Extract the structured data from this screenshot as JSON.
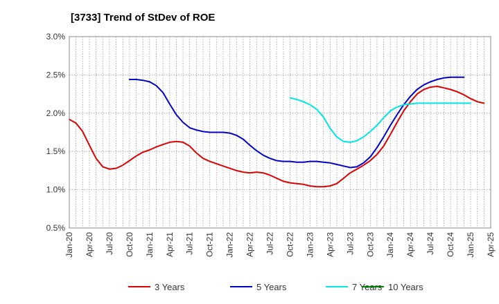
{
  "chart_data": {
    "type": "line",
    "title": "[3733]  Trend of StDev of ROE",
    "xlabel": "",
    "ylabel": "",
    "y_ticks": [
      "0.5%",
      "1.0%",
      "1.5%",
      "2.0%",
      "2.5%",
      "3.0%"
    ],
    "y_tick_values": [
      0.5,
      1.0,
      1.5,
      2.0,
      2.5,
      3.0
    ],
    "ylim": [
      0.5,
      3.0
    ],
    "x_ticks": [
      "Jan-20",
      "Apr-20",
      "Jul-20",
      "Oct-20",
      "Jan-21",
      "Apr-21",
      "Jul-21",
      "Oct-21",
      "Jan-22",
      "Apr-22",
      "Jul-22",
      "Oct-22",
      "Jan-23",
      "Apr-23",
      "Jul-23",
      "Oct-23",
      "Jan-24",
      "Apr-24",
      "Jul-24",
      "Oct-24",
      "Jan-25",
      "Apr-25"
    ],
    "x_months": [
      "2020-01",
      "2020-02",
      "2020-03",
      "2020-04",
      "2020-05",
      "2020-06",
      "2020-07",
      "2020-08",
      "2020-09",
      "2020-10",
      "2020-11",
      "2020-12",
      "2021-01",
      "2021-02",
      "2021-03",
      "2021-04",
      "2021-05",
      "2021-06",
      "2021-07",
      "2021-08",
      "2021-09",
      "2021-10",
      "2021-11",
      "2021-12",
      "2022-01",
      "2022-02",
      "2022-03",
      "2022-04",
      "2022-05",
      "2022-06",
      "2022-07",
      "2022-08",
      "2022-09",
      "2022-10",
      "2022-11",
      "2022-12",
      "2023-01",
      "2023-02",
      "2023-03",
      "2023-04",
      "2023-05",
      "2023-06",
      "2023-07",
      "2023-08",
      "2023-09",
      "2023-10",
      "2023-11",
      "2023-12",
      "2024-01",
      "2024-02",
      "2024-03",
      "2024-04",
      "2024-05",
      "2024-06",
      "2024-07",
      "2024-08",
      "2024-09",
      "2024-10",
      "2024-11",
      "2024-12",
      "2025-01",
      "2025-02",
      "2025-03",
      "2025-04"
    ],
    "xlim": [
      "2020-01",
      "2025-04"
    ],
    "grid": true,
    "legend_position": "bottom",
    "series": [
      {
        "name": "3 Years",
        "color": "#dd0000",
        "start": "2020-01",
        "values": [
          1.92,
          1.87,
          1.76,
          1.58,
          1.41,
          1.3,
          1.27,
          1.28,
          1.32,
          1.38,
          1.44,
          1.49,
          1.52,
          1.56,
          1.59,
          1.62,
          1.63,
          1.62,
          1.57,
          1.48,
          1.41,
          1.37,
          1.34,
          1.31,
          1.28,
          1.25,
          1.23,
          1.22,
          1.23,
          1.22,
          1.19,
          1.15,
          1.11,
          1.09,
          1.08,
          1.07,
          1.05,
          1.04,
          1.04,
          1.05,
          1.08,
          1.15,
          1.22,
          1.27,
          1.32,
          1.38,
          1.46,
          1.57,
          1.72,
          1.88,
          2.03,
          2.15,
          2.25,
          2.31,
          2.34,
          2.35,
          2.33,
          2.31,
          2.28,
          2.24,
          2.19,
          2.15,
          2.13
        ]
      },
      {
        "name": "5 Years",
        "color": "#0000cc",
        "start": "2020-10",
        "values": [
          2.44,
          2.44,
          2.43,
          2.41,
          2.36,
          2.27,
          2.12,
          1.98,
          1.88,
          1.81,
          1.78,
          1.76,
          1.75,
          1.75,
          1.75,
          1.74,
          1.71,
          1.66,
          1.58,
          1.51,
          1.45,
          1.41,
          1.38,
          1.37,
          1.37,
          1.36,
          1.36,
          1.37,
          1.37,
          1.36,
          1.35,
          1.33,
          1.31,
          1.29,
          1.3,
          1.35,
          1.43,
          1.55,
          1.69,
          1.84,
          1.98,
          2.11,
          2.22,
          2.31,
          2.37,
          2.41,
          2.44,
          2.46,
          2.47,
          2.47,
          2.47
        ]
      },
      {
        "name": "7 Years",
        "color": "#00e5e5",
        "start": "2022-10",
        "values": [
          2.2,
          2.18,
          2.15,
          2.11,
          2.05,
          1.95,
          1.8,
          1.69,
          1.63,
          1.62,
          1.64,
          1.69,
          1.76,
          1.84,
          1.94,
          2.03,
          2.08,
          2.11,
          2.12,
          2.13,
          2.13,
          2.13,
          2.13,
          2.13,
          2.13,
          2.13,
          2.13,
          2.13
        ]
      },
      {
        "name": "10 Years",
        "color": "#008000",
        "start": "2025-01",
        "values": []
      }
    ]
  }
}
